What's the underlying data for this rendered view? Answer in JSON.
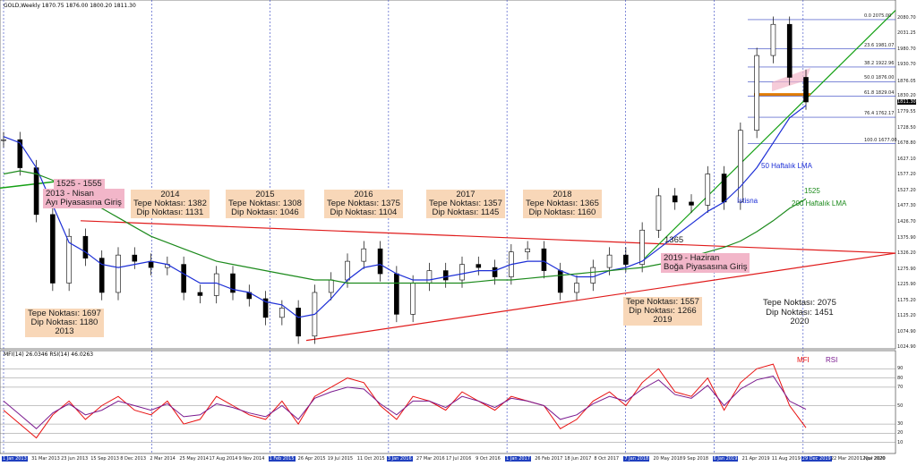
{
  "header": {
    "title": "GOLD,Weekly  1870.75 1876.00 1800.20 1811.30",
    "indicator": "MFI(14) 26.0346  RSI(14) 46.0263"
  },
  "colors": {
    "candle": "#000000",
    "ma50": "#1d2fd6",
    "ma200": "#1c8a1c",
    "trend": "#e01b1b",
    "upper_channel": "#14a014",
    "fib": "#3040c0",
    "mfi": "#e81010",
    "rsi": "#7a1a8f",
    "support": "#e07b00"
  },
  "chart_data": {
    "type": "line",
    "subtype": "candlestick",
    "series": [
      {
        "name": "",
        "x": [
          "2013-01",
          "2013-03",
          "2013-05",
          "2013-06",
          "2013-08",
          "2013-10",
          "2013-12",
          "2014-02",
          "2014-04",
          "2014-06",
          "2014-08",
          "2014-10",
          "2014-12",
          "2015-02",
          "2015-04",
          "2015-06",
          "2015-08",
          "2015-10",
          "2015-12",
          "2016-02",
          "2016-04",
          "2016-06",
          "2016-08",
          "2016-10",
          "2016-12",
          "2017-02",
          "2017-04",
          "2017-06",
          "2017-08",
          "2017-10",
          "2017-12",
          "2018-02",
          "2018-04",
          "2018-06",
          "2018-08",
          "2018-10",
          "2018-12",
          "2019-02",
          "2019-04",
          "2019-06",
          "2019-08",
          "2019-10",
          "2019-12",
          "2020-02",
          "2020-03",
          "2020-05",
          "2020-07",
          "2020-08",
          "2020-10",
          "2020-11"
        ],
        "values": [
          1690,
          1600,
          1450,
          1230,
          1380,
          1310,
          1200,
          1320,
          1300,
          1280,
          1290,
          1200,
          1190,
          1260,
          1200,
          1180,
          1120,
          1150,
          1060,
          1200,
          1240,
          1300,
          1340,
          1260,
          1130,
          1230,
          1270,
          1240,
          1290,
          1280,
          1250,
          1330,
          1340,
          1270,
          1200,
          1230,
          1280,
          1320,
          1290,
          1400,
          1510,
          1490,
          1480,
          1580,
          1490,
          1720,
          1960,
          2060,
          1890,
          1811
        ]
      },
      {
        "name": "50 Haftalık LMA",
        "values": [
          1700,
          1680,
          1600,
          1480,
          1360,
          1330,
          1290,
          1280,
          1290,
          1300,
          1290,
          1260,
          1230,
          1230,
          1210,
          1200,
          1170,
          1160,
          1120,
          1130,
          1180,
          1240,
          1280,
          1290,
          1260,
          1240,
          1240,
          1250,
          1260,
          1270,
          1270,
          1290,
          1300,
          1300,
          1270,
          1250,
          1250,
          1270,
          1280,
          1300,
          1340,
          1380,
          1420,
          1460,
          1490,
          1540,
          1600,
          1680,
          1760,
          1800
        ]
      },
      {
        "name": "200 Haftalık LMA",
        "values": [
          1580,
          1590,
          1580,
          1560,
          1530,
          1500,
          1470,
          1440,
          1410,
          1380,
          1360,
          1340,
          1320,
          1300,
          1290,
          1280,
          1270,
          1260,
          1250,
          1240,
          1240,
          1230,
          1230,
          1230,
          1230,
          1230,
          1230,
          1230,
          1230,
          1235,
          1240,
          1240,
          1245,
          1250,
          1255,
          1260,
          1265,
          1270,
          1275,
          1280,
          1290,
          1300,
          1315,
          1330,
          1345,
          1365,
          1395,
          1430,
          1470,
          1500
        ]
      },
      {
        "name": "MFI",
        "values": [
          45,
          30,
          15,
          40,
          55,
          35,
          50,
          60,
          45,
          40,
          55,
          30,
          35,
          60,
          50,
          40,
          35,
          55,
          30,
          60,
          70,
          80,
          75,
          50,
          35,
          60,
          55,
          45,
          65,
          55,
          45,
          60,
          55,
          50,
          25,
          35,
          55,
          65,
          50,
          75,
          90,
          65,
          60,
          80,
          45,
          75,
          90,
          95,
          50,
          26
        ]
      },
      {
        "name": "RSI",
        "values": [
          55,
          40,
          25,
          42,
          52,
          40,
          45,
          55,
          50,
          45,
          52,
          38,
          40,
          52,
          48,
          42,
          38,
          50,
          35,
          58,
          65,
          70,
          68,
          52,
          40,
          55,
          55,
          48,
          60,
          55,
          48,
          58,
          55,
          50,
          35,
          40,
          52,
          60,
          55,
          68,
          78,
          62,
          58,
          72,
          50,
          68,
          78,
          82,
          55,
          46
        ]
      }
    ],
    "levels": {
      "fibonacci": [
        {
          "label": "0.0",
          "value": 2075.0
        },
        {
          "label": "23.6",
          "value": 1981.07
        },
        {
          "label": "38.2",
          "value": 1922.96
        },
        {
          "label": "50.0",
          "value": 1876.0
        },
        {
          "label": "61.8",
          "value": 1829.04
        },
        {
          "label": "76.4",
          "value": 1762.17
        },
        {
          "label": "100.0",
          "value": 1677.0
        }
      ],
      "price_axis": [
        "2080.70",
        "2031.25",
        "1980.70",
        "1930.70",
        "1876.05",
        "1830.20",
        "1779.55",
        "1728.50",
        "1678.80",
        "1627.10",
        "1577.20",
        "1527.20",
        "1477.30",
        "1426.70",
        "1375.90",
        "1326.20",
        "1275.90",
        "1225.90",
        "1175.20",
        "1125.20",
        "1074.90",
        "1024.90"
      ],
      "current_price": "1811.30",
      "indicator_axis": [
        "90",
        "80",
        "70",
        "50",
        "30",
        "20",
        "10"
      ]
    },
    "x_ticks": [
      "1 Jan 2013",
      "31 Mar 2013",
      "23 Jun 2013",
      "15 Sep 2013",
      "8 Dec 2013",
      "2 Mar 2014",
      "25 May 2014",
      "17 Aug 2014",
      "9 Nov 2014",
      "1 Feb 2015",
      "26 Apr 2015",
      "19 Jul 2015",
      "11 Oct 2015",
      "3 Jan 2016",
      "27 Mar 2016",
      "17 Jul 2016",
      "9 Oct 2016",
      "1 Jan 2017",
      "26 Feb 2017",
      "18 Jun 2017",
      "8 Oct 2017",
      "7 Jan 2018",
      "20 May 2018",
      "9 Sep 2018",
      "6 Jan 2019",
      "21 Apr 2019",
      "11 Aug 2019",
      "29 Dec 2019",
      "22 Mar 2020",
      "12 Jul 2020",
      "1 Nov 2020"
    ],
    "annotations": {
      "y2013_label": "Tepe Noktası: 1697\nDip Noktası: 1180\n2013",
      "y2014_label": "2014\nTepe Noktası: 1382\nDip Noktası: 1131",
      "y2015_label": "2015\nTepe Noktası: 1308\nDip Noktası: 1046",
      "y2016_label": "2016\nTepe Noktası: 1375\nDip Noktası: 1104",
      "y2017_label": "2017\nTepe Noktası: 1357\nDip Noktası: 1145",
      "y2018_label": "2018\nTepe Noktası: 1365\nDip Noktası: 1160",
      "y2019_label": "Tepe Noktası: 1557\nDip Noktası: 1266\n2019",
      "y2020_label": "Tepe Noktası: 2075\nDip Noktası: 1451\n2020",
      "bear_range": "1525 - 1555",
      "bear_entry": "2013 - Nisan\nAyı Piyasasına Giriş",
      "bull_entry": "2019 - Haziran\nBoğa Piyasasına Giriş",
      "level_1365": "1365",
      "level_1525": "1525",
      "ma50_label": "50 Haftalık LMA",
      "ma200_label": "200 Haftalık LMA",
      "exception": "İstisna",
      "mfi_legend": "MFI",
      "rsi_legend": "RSI"
    }
  }
}
